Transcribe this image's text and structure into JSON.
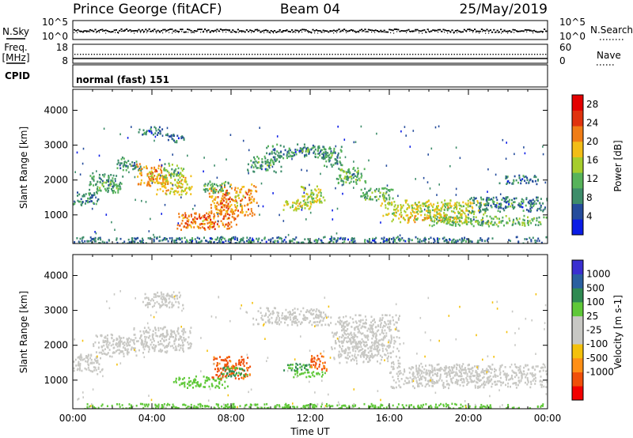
{
  "header": {
    "station": "Prince George (fitACF)",
    "beam": "Beam 04",
    "date": "25/May/2019"
  },
  "colors": {
    "power": [
      "#0a1ce6",
      "#254c9c",
      "#3d8d6a",
      "#57b35a",
      "#a6cd2c",
      "#f2bd16",
      "#f07d16",
      "#e0330e",
      "#e30000"
    ],
    "velocity": [
      "#f20000",
      "#f04f0a",
      "#ff8f15",
      "#f4c10c",
      "#c8c8c4",
      "#c8c8c4",
      "#5fc838",
      "#2f8a52",
      "#2a5fa0",
      "#3a2fd0"
    ]
  },
  "chart_data": [
    {
      "panel": "nsky-nsearch",
      "type": "line",
      "left_label": "N.Sky",
      "right_label": "N.Search",
      "left_ticks": [
        "10^5",
        "10^0"
      ],
      "right_ticks": [
        "10^5",
        "10^0"
      ]
    },
    {
      "panel": "freq-nave",
      "type": "line",
      "left_label_line1": "Freq.",
      "left_label_line2": "[MHz]",
      "right_label": "Nave",
      "left_ticks": [
        "18",
        "8"
      ],
      "right_ticks": [
        "60",
        "0"
      ]
    },
    {
      "panel": "cpid",
      "label": "CPID",
      "mode_text": "normal (fast) 151"
    },
    {
      "panel": "power",
      "type": "heatmap",
      "ylabel": "Slant Range [km]",
      "yticks": [
        1000,
        2000,
        3000,
        4000
      ],
      "ylim": [
        180,
        4600
      ],
      "xlim_hours": [
        0,
        24
      ],
      "colorbar_label": "Power [dB]",
      "colorbar_ticks": [
        "4",
        "8",
        "12",
        "16",
        "20",
        "24",
        "28"
      ],
      "colorbar_range": [
        0,
        30
      ],
      "bands": [
        {
          "t0": 0.0,
          "t1": 1.3,
          "r0": 1300,
          "r1": 1700,
          "p": 8
        },
        {
          "t0": 0.8,
          "t1": 2.5,
          "r0": 1650,
          "r1": 2250,
          "p": 10
        },
        {
          "t0": 2.2,
          "t1": 3.5,
          "r0": 2300,
          "r1": 2700,
          "p": 9
        },
        {
          "t0": 3.2,
          "t1": 4.7,
          "r0": 1850,
          "r1": 2500,
          "p": 20
        },
        {
          "t0": 4.2,
          "t1": 6.0,
          "r0": 1600,
          "r1": 2200,
          "p": 18
        },
        {
          "t0": 4.5,
          "t1": 5.6,
          "r0": 2100,
          "r1": 2500,
          "p": 12
        },
        {
          "t0": 3.3,
          "t1": 4.6,
          "r0": 3300,
          "r1": 3550,
          "p": 7
        },
        {
          "t0": 4.6,
          "t1": 5.6,
          "r0": 3100,
          "r1": 3350,
          "p": 7
        },
        {
          "t0": 5.2,
          "t1": 8.3,
          "r0": 600,
          "r1": 1100,
          "p": 22
        },
        {
          "t0": 6.8,
          "t1": 9.3,
          "r0": 1000,
          "r1": 1900,
          "p": 21
        },
        {
          "t0": 6.5,
          "t1": 8.0,
          "r0": 1650,
          "r1": 2000,
          "p": 11
        },
        {
          "t0": 8.8,
          "t1": 10.5,
          "r0": 2250,
          "r1": 2700,
          "p": 9
        },
        {
          "t0": 9.6,
          "t1": 13.0,
          "r0": 2650,
          "r1": 3050,
          "p": 9
        },
        {
          "t0": 10.6,
          "t1": 12.0,
          "r0": 1150,
          "r1": 1500,
          "p": 16
        },
        {
          "t0": 11.5,
          "t1": 12.7,
          "r0": 1300,
          "r1": 1850,
          "p": 16
        },
        {
          "t0": 12.5,
          "t1": 13.6,
          "r0": 2400,
          "r1": 3000,
          "p": 9
        },
        {
          "t0": 13.3,
          "t1": 14.8,
          "r0": 1900,
          "r1": 2400,
          "p": 11
        },
        {
          "t0": 14.5,
          "t1": 16.2,
          "r0": 1400,
          "r1": 1800,
          "p": 11
        },
        {
          "t0": 15.5,
          "t1": 21.0,
          "r0": 1000,
          "r1": 1450,
          "p": 16
        },
        {
          "t0": 16.0,
          "t1": 20.0,
          "r0": 800,
          "r1": 1050,
          "p": 18
        },
        {
          "t0": 18.0,
          "t1": 24.0,
          "r0": 700,
          "r1": 1000,
          "p": 12
        },
        {
          "t0": 20.0,
          "t1": 24.0,
          "r0": 1100,
          "r1": 1550,
          "p": 8
        },
        {
          "t0": 21.5,
          "t1": 23.5,
          "r0": 1900,
          "r1": 2200,
          "p": 7
        },
        {
          "t0": 0.0,
          "t1": 24.0,
          "r0": 200,
          "r1": 400,
          "p": 7
        }
      ]
    },
    {
      "panel": "velocity",
      "type": "heatmap",
      "ylabel": "Slant Range [km]",
      "yticks": [
        1000,
        2000,
        3000,
        4000
      ],
      "ylim": [
        180,
        4600
      ],
      "xlim_hours": [
        0,
        24
      ],
      "xticks": [
        "00:00",
        "04:00",
        "08:00",
        "12:00",
        "16:00",
        "20:00",
        "00:00"
      ],
      "xlabel": "Time UT",
      "colorbar_label": "Velocity [m s-1]",
      "colorbar_ticks": [
        "1000",
        "500",
        "100",
        "25",
        "-25",
        "-100",
        "-500",
        "-1000"
      ],
      "bands": [
        {
          "t0": 0.0,
          "t1": 1.5,
          "r0": 1200,
          "r1": 1800,
          "v": 0
        },
        {
          "t0": 1.0,
          "t1": 3.2,
          "r0": 1700,
          "r1": 2350,
          "v": 0
        },
        {
          "t0": 3.0,
          "t1": 6.0,
          "r0": 1800,
          "r1": 2550,
          "v": 0
        },
        {
          "t0": 5.0,
          "t1": 7.8,
          "r0": 800,
          "r1": 1150,
          "v": 200
        },
        {
          "t0": 7.0,
          "t1": 9.0,
          "r0": 1050,
          "r1": 1700,
          "v": -700
        },
        {
          "t0": 7.5,
          "t1": 8.8,
          "r0": 1100,
          "r1": 1400,
          "v": 600
        },
        {
          "t0": 9.0,
          "t1": 13.0,
          "r0": 2600,
          "r1": 3100,
          "v": 0
        },
        {
          "t0": 11.0,
          "t1": 12.8,
          "r0": 1100,
          "r1": 1300,
          "v": 200
        },
        {
          "t0": 10.6,
          "t1": 12.0,
          "r0": 1300,
          "r1": 1550,
          "v": 600
        },
        {
          "t0": 11.9,
          "t1": 12.8,
          "r0": 1300,
          "r1": 1800,
          "v": -600
        },
        {
          "t0": 13.0,
          "t1": 16.5,
          "r0": 1500,
          "r1": 2900,
          "v": 0
        },
        {
          "t0": 16.0,
          "t1": 24.0,
          "r0": 800,
          "r1": 1500,
          "v": 0
        },
        {
          "t0": 3.5,
          "t1": 5.6,
          "r0": 3100,
          "r1": 3550,
          "v": 0
        },
        {
          "t0": 0.0,
          "t1": 24.0,
          "r0": 200,
          "r1": 350,
          "v": 150
        }
      ]
    }
  ]
}
